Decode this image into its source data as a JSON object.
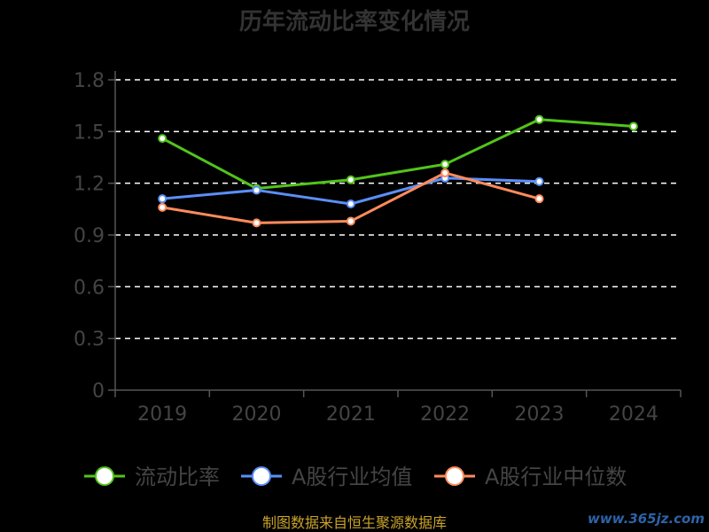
{
  "chart_data": {
    "type": "line",
    "title": "历年流动比率变化情况",
    "categories": [
      "2019",
      "2020",
      "2021",
      "2022",
      "2023",
      "2024"
    ],
    "yticks": [
      "0",
      "0.3",
      "0.6",
      "0.9",
      "1.2",
      "1.5",
      "1.8"
    ],
    "ylim": [
      0,
      1.8
    ],
    "grid": true,
    "legend_position": "bottom",
    "series": [
      {
        "name": "流动比率",
        "color": "#52c41a",
        "values": [
          1.46,
          1.17,
          1.22,
          1.31,
          1.57,
          1.53
        ]
      },
      {
        "name": "A股行业均值",
        "color": "#5b8ff9",
        "values": [
          1.11,
          1.16,
          1.08,
          1.23,
          1.21,
          null
        ]
      },
      {
        "name": "A股行业中位数",
        "color": "#ff8b5c",
        "values": [
          1.06,
          0.97,
          0.98,
          1.26,
          1.11,
          null
        ]
      }
    ]
  },
  "source": "制图数据来自恒生聚源数据库",
  "watermark": "www.365jz.com"
}
